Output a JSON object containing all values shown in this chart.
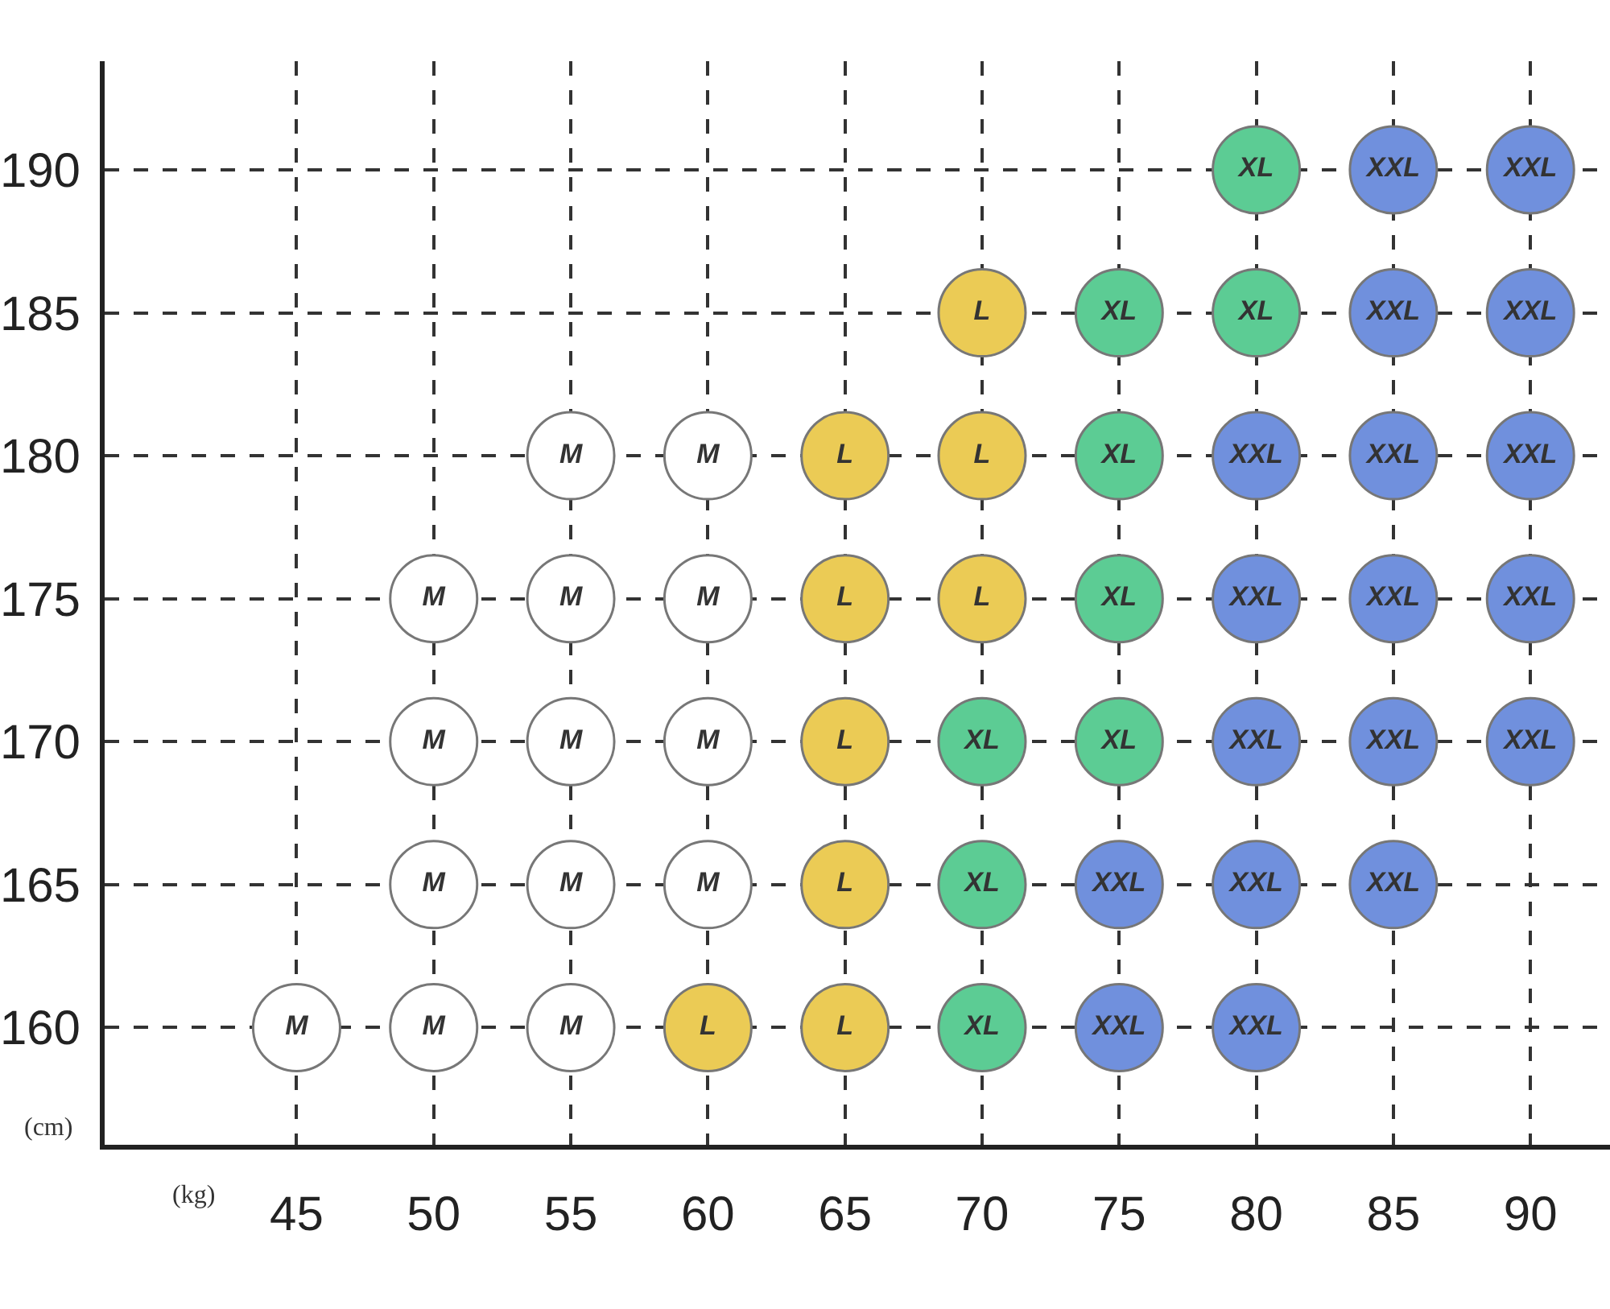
{
  "chart_data": {
    "type": "scatter",
    "xlabel": "(kg)",
    "ylabel": "(cm)",
    "xlim": [
      38,
      92.9
    ],
    "ylim": [
      155.9,
      193.8
    ],
    "xticks": [
      45,
      50,
      55,
      60,
      65,
      70,
      75,
      80,
      85,
      90
    ],
    "yticks": [
      160,
      165,
      170,
      175,
      180,
      185,
      190
    ],
    "grid": true,
    "marker": "circle",
    "series": [
      {
        "name": "M",
        "color": "#ffffff",
        "x": [
          45,
          50,
          55,
          50,
          55,
          60,
          50,
          55,
          60,
          50,
          55,
          60,
          55,
          60
        ],
        "values": [
          160,
          160,
          160,
          165,
          165,
          165,
          170,
          170,
          170,
          175,
          175,
          175,
          180,
          180
        ]
      },
      {
        "name": "L",
        "color": "#ebcb55",
        "x": [
          60,
          65,
          65,
          65,
          65,
          70,
          65,
          70,
          70
        ],
        "values": [
          160,
          160,
          165,
          170,
          175,
          175,
          180,
          180,
          185
        ]
      },
      {
        "name": "XL",
        "color": "#5ccc94",
        "x": [
          70,
          70,
          70,
          75,
          75,
          75,
          75,
          80,
          80
        ],
        "values": [
          160,
          165,
          170,
          170,
          175,
          180,
          185,
          185,
          190
        ]
      },
      {
        "name": "XXL",
        "color": "#7090dd",
        "x": [
          75,
          80,
          75,
          80,
          85,
          80,
          85,
          90,
          80,
          85,
          90,
          80,
          85,
          90,
          85,
          90,
          85,
          90
        ],
        "values": [
          160,
          160,
          165,
          165,
          165,
          170,
          170,
          170,
          175,
          175,
          175,
          180,
          180,
          180,
          185,
          185,
          190,
          190
        ]
      }
    ]
  }
}
